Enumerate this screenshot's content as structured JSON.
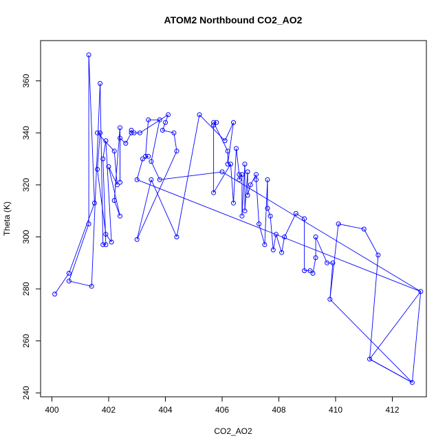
{
  "chart_data": {
    "type": "scatter",
    "title": "ATOM2 Northbound CO2_AO2",
    "xlabel": "CO2_AO2",
    "ylabel": "Theta (K)",
    "xlim": [
      399.6,
      413.2
    ],
    "ylim": [
      238.5,
      375.5
    ],
    "xticks": [
      400,
      402,
      404,
      406,
      408,
      410,
      412
    ],
    "yticks": [
      240,
      260,
      280,
      300,
      320,
      340,
      360
    ],
    "grid": false,
    "legend": "none",
    "series_color": "#0000ff",
    "connected": true,
    "points": [
      [
        400.1,
        278
      ],
      [
        400.6,
        286
      ],
      [
        400.6,
        283
      ],
      [
        401.4,
        281
      ],
      [
        401.3,
        305
      ],
      [
        401.5,
        313
      ],
      [
        401.3,
        370
      ],
      [
        401.7,
        359
      ],
      [
        401.6,
        326
      ],
      [
        401.8,
        297
      ],
      [
        401.9,
        297
      ],
      [
        401.8,
        330
      ],
      [
        401.9,
        337
      ],
      [
        401.7,
        340
      ],
      [
        401.6,
        340
      ],
      [
        402.1,
        298
      ],
      [
        401.9,
        301
      ],
      [
        402.3,
        320
      ],
      [
        402.0,
        327
      ],
      [
        402.2,
        333
      ],
      [
        402.4,
        308
      ],
      [
        402.2,
        314
      ],
      [
        402.4,
        342
      ],
      [
        402.4,
        321
      ],
      [
        402.4,
        338
      ],
      [
        402.6,
        336
      ],
      [
        402.8,
        340
      ],
      [
        402.8,
        341
      ],
      [
        402.9,
        340
      ],
      [
        403.1,
        340
      ],
      [
        403.0,
        322
      ],
      [
        403.2,
        330
      ],
      [
        403.4,
        331
      ],
      [
        403.3,
        331
      ],
      [
        403.4,
        345
      ],
      [
        403.8,
        345
      ],
      [
        403.5,
        329
      ],
      [
        403.8,
        322
      ],
      [
        403.9,
        341
      ],
      [
        404.0,
        344
      ],
      [
        404.1,
        347
      ],
      [
        404.3,
        340
      ],
      [
        404.4,
        333
      ],
      [
        403.0,
        299
      ],
      [
        403.5,
        322
      ],
      [
        404.4,
        300
      ],
      [
        405.2,
        347
      ],
      [
        405.7,
        344
      ],
      [
        405.8,
        344
      ],
      [
        405.7,
        343
      ],
      [
        405.7,
        317
      ],
      [
        406.0,
        325
      ],
      [
        406.1,
        337
      ],
      [
        406.2,
        333
      ],
      [
        406.2,
        328
      ],
      [
        406.4,
        344
      ],
      [
        406.3,
        328
      ],
      [
        406.4,
        313
      ],
      [
        406.5,
        334
      ],
      [
        406.6,
        324
      ],
      [
        406.6,
        322
      ],
      [
        406.7,
        324
      ],
      [
        406.7,
        308
      ],
      [
        406.8,
        328
      ],
      [
        406.8,
        310
      ],
      [
        406.9,
        325
      ],
      [
        406.9,
        316
      ],
      [
        407.0,
        320
      ],
      [
        407.2,
        324
      ],
      [
        407.2,
        322
      ],
      [
        407.3,
        305
      ],
      [
        407.5,
        297
      ],
      [
        407.6,
        322
      ],
      [
        407.6,
        311
      ],
      [
        407.7,
        308
      ],
      [
        407.8,
        295
      ],
      [
        407.9,
        301
      ],
      [
        408.1,
        294
      ],
      [
        408.2,
        300
      ],
      [
        408.6,
        309
      ],
      [
        408.9,
        307
      ],
      [
        408.9,
        287
      ],
      [
        409.1,
        287
      ],
      [
        409.2,
        286
      ],
      [
        409.3,
        292
      ],
      [
        409.3,
        300
      ],
      [
        409.7,
        290
      ],
      [
        409.9,
        290
      ],
      [
        409.8,
        276
      ],
      [
        410.1,
        305
      ],
      [
        411.0,
        303
      ],
      [
        411.5,
        293
      ],
      [
        411.2,
        253
      ],
      [
        412.7,
        244
      ],
      [
        413.0,
        279
      ]
    ],
    "path_order": [
      0,
      1,
      5,
      6,
      4,
      2,
      3,
      7,
      9,
      10,
      11,
      12,
      15,
      16,
      8,
      13,
      14,
      19,
      17,
      18,
      20,
      21,
      22,
      23,
      24,
      25,
      26,
      27,
      28,
      29,
      40,
      39,
      38,
      41,
      42,
      43,
      44,
      45,
      46,
      52,
      55,
      54,
      53,
      47,
      48,
      49,
      50,
      56,
      57,
      58,
      59,
      60,
      61,
      62,
      63,
      64,
      65,
      66,
      67,
      68,
      69,
      70,
      71,
      72,
      73,
      74,
      75,
      76,
      77,
      78,
      79,
      80,
      81,
      82,
      83,
      84,
      85,
      86,
      87,
      88,
      89,
      90,
      91,
      92,
      93,
      94,
      30,
      31,
      32,
      33,
      34,
      35,
      36,
      37,
      51,
      94,
      92,
      93,
      88
    ]
  }
}
